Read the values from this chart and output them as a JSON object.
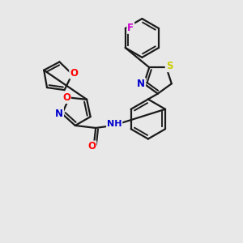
{
  "background_color": "#e8e8e8",
  "bond_color": "#1a1a1a",
  "atom_colors": {
    "O": "#ff0000",
    "N": "#0000cd",
    "S": "#cccc00",
    "F": "#cc00cc",
    "H": "#008888",
    "C": "#1a1a1a"
  },
  "bond_width": 1.6,
  "figsize": [
    3.0,
    3.0
  ],
  "dpi": 100
}
